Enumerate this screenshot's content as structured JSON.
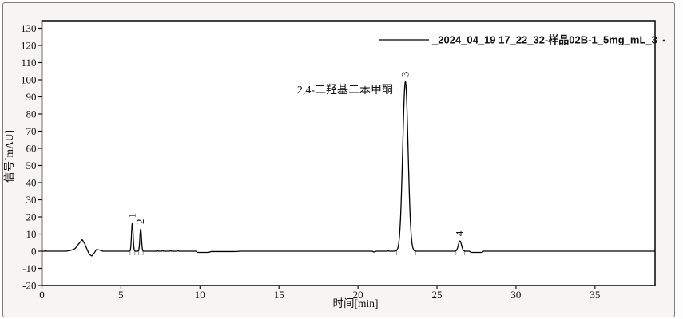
{
  "figure": {
    "legend_label": "_2024_04_19 17_22_32-样品02B-1_5mg_mL_3",
    "annotation": "2,4-二羟基二苯甲酮",
    "stray_dot": ".",
    "trace_color": "#000000",
    "integration_mark_color": "#9a9a9a",
    "frame_bg": "#f6f5f3"
  },
  "chart_data": {
    "type": "line",
    "title": "",
    "xlabel": "时间[min]",
    "ylabel": "信号[mAU]",
    "xlim": [
      0,
      38.8
    ],
    "ylim": [
      -20,
      130
    ],
    "x_ticks": [
      0,
      5,
      10,
      15,
      20,
      25,
      30,
      35
    ],
    "y_ticks": [
      -20,
      -10,
      0,
      10,
      20,
      30,
      40,
      50,
      60,
      70,
      80,
      90,
      100,
      110,
      120,
      130
    ],
    "grid": false,
    "legend": [
      "_2024_04_19 17_22_32-样品02B-1_5mg_mL_3"
    ],
    "legend_position": "top-right",
    "series": [
      {
        "name": "_2024_04_19 17_22_32-样品02B-1_5mg_mL_3",
        "kind": "chromatogram-trace",
        "peaks": [
          {
            "label": "1",
            "time_min": 5.72,
            "height_mAU": 16.5,
            "sigma": 0.05
          },
          {
            "label": "2",
            "time_min": 6.25,
            "height_mAU": 13.0,
            "sigma": 0.05
          },
          {
            "label": "3",
            "time_min": 23.0,
            "height_mAU": 99.0,
            "sigma": 0.17
          },
          {
            "label": "4",
            "time_min": 26.45,
            "height_mAU": 6.0,
            "sigma": 0.1
          }
        ],
        "baseline_points": [
          [
            0,
            0
          ],
          [
            0.21,
            0
          ],
          [
            0.23,
            0.9
          ],
          [
            0.25,
            0
          ],
          [
            1.5,
            0
          ],
          [
            1.8,
            0.4
          ],
          [
            2.1,
            1.5
          ],
          [
            2.35,
            4.5
          ],
          [
            2.55,
            6.8
          ],
          [
            2.7,
            4.5
          ],
          [
            2.85,
            1.2
          ],
          [
            3.0,
            -1.8
          ],
          [
            3.15,
            -2.8
          ],
          [
            3.3,
            -1.2
          ],
          [
            3.45,
            1.0
          ],
          [
            3.65,
            0.7
          ],
          [
            3.85,
            0
          ],
          [
            7.25,
            0
          ],
          [
            7.3,
            0.7
          ],
          [
            7.35,
            0
          ],
          [
            7.6,
            0
          ],
          [
            7.65,
            0.8
          ],
          [
            7.7,
            0
          ],
          [
            8.1,
            0
          ],
          [
            8.15,
            0.6
          ],
          [
            8.2,
            0
          ],
          [
            8.55,
            0
          ],
          [
            8.6,
            0.5
          ],
          [
            8.65,
            0
          ],
          [
            9.75,
            0
          ],
          [
            9.85,
            -0.7
          ],
          [
            10.55,
            -0.7
          ],
          [
            10.7,
            -0.2
          ],
          [
            12.3,
            -0.2
          ],
          [
            12.55,
            0
          ],
          [
            20.9,
            0
          ],
          [
            21.0,
            -0.5
          ],
          [
            21.15,
            0
          ],
          [
            21.85,
            0
          ],
          [
            21.9,
            0.4
          ],
          [
            21.95,
            0
          ],
          [
            27.05,
            0
          ],
          [
            27.15,
            -0.7
          ],
          [
            27.85,
            -0.7
          ],
          [
            27.95,
            0
          ],
          [
            38.8,
            0
          ]
        ],
        "integration_marks_min": [
          5.58,
          5.88,
          6.12,
          6.4,
          22.45,
          23.65,
          26.2,
          26.75
        ]
      }
    ],
    "annotations": [
      {
        "text": "2,4-二羟基二苯甲酮",
        "x_min": 22.2,
        "y_mAU": 92,
        "align": "right"
      }
    ]
  }
}
